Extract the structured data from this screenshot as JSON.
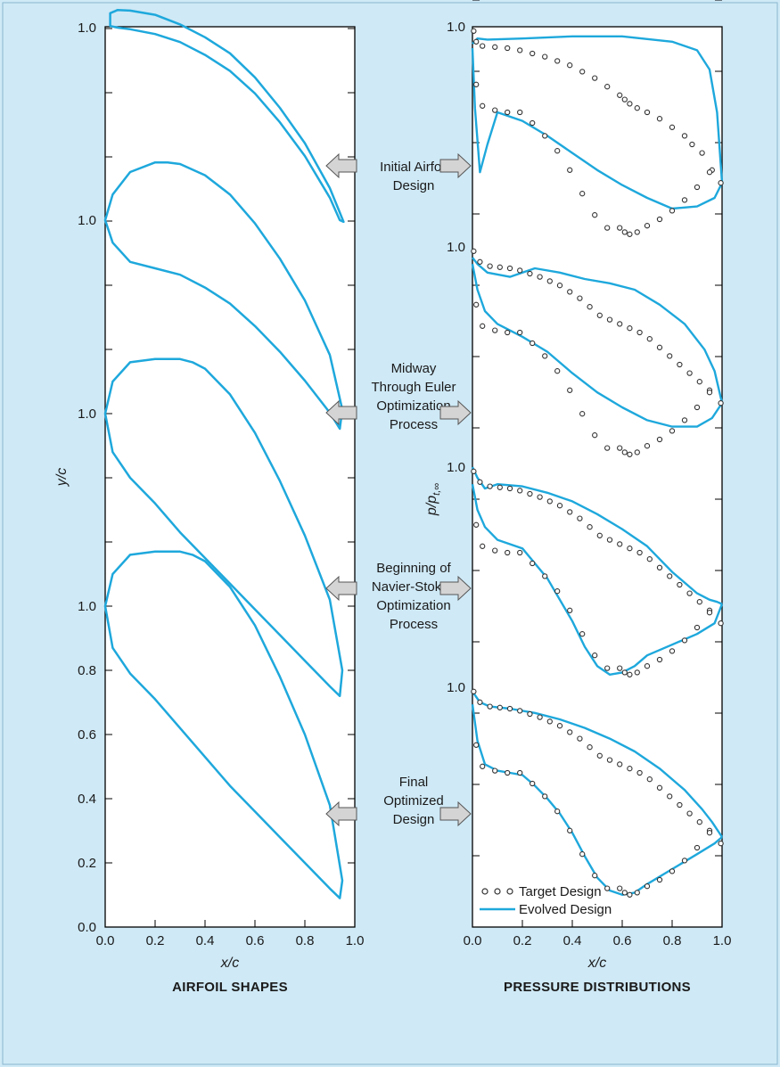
{
  "colors": {
    "background": "#cfe9f6",
    "panel": "#ffffff",
    "curve": "#1ea8dc",
    "marker_stroke": "#333333",
    "arrow_fill": "#d4d4d4",
    "arrow_stroke": "#555555"
  },
  "chart_data": [
    {
      "type": "line",
      "caption": "AIRFOIL SHAPES",
      "xlabel": "x/c",
      "ylabel": "y/c",
      "xlim": [
        0,
        1
      ],
      "ylim": [
        0,
        1.5
      ],
      "x_tick_labels": [
        "0.0",
        "0.2",
        "0.4",
        "0.6",
        "0.8",
        "1.0"
      ],
      "y_tick_labels_bottom_panel": [
        "0.0",
        "0.2",
        "0.4",
        "0.6",
        "0.8",
        "1.0"
      ],
      "stacked_panel_peak_label": "1.0",
      "series": [
        {
          "stage": "Initial Airfoil Design",
          "upper_x": [
            0.02,
            0.05,
            0.1,
            0.2,
            0.3,
            0.4,
            0.5,
            0.6,
            0.7,
            0.8,
            0.9,
            0.955
          ],
          "upper_y": [
            1.045,
            1.055,
            1.053,
            1.04,
            1.01,
            0.97,
            0.92,
            0.845,
            0.75,
            0.64,
            0.5,
            0.395
          ],
          "lower_x": [
            0.02,
            0.05,
            0.1,
            0.2,
            0.3,
            0.4,
            0.5,
            0.6,
            0.7,
            0.8,
            0.9,
            0.94
          ],
          "lower_y": [
            1.005,
            1.0,
            0.995,
            0.98,
            0.955,
            0.915,
            0.865,
            0.795,
            0.705,
            0.6,
            0.47,
            0.4
          ]
        },
        {
          "stage": "Midway Through Euler Optimization Process",
          "upper_x": [
            0.0,
            0.03,
            0.1,
            0.2,
            0.25,
            0.3,
            0.4,
            0.5,
            0.6,
            0.7,
            0.8,
            0.9,
            0.95
          ],
          "upper_y": [
            1.0,
            1.08,
            1.15,
            1.18,
            1.18,
            1.175,
            1.14,
            1.08,
            0.99,
            0.88,
            0.75,
            0.58,
            0.41
          ],
          "lower_x": [
            0.0,
            0.03,
            0.1,
            0.2,
            0.3,
            0.4,
            0.5,
            0.6,
            0.7,
            0.8,
            0.9,
            0.94
          ],
          "lower_y": [
            1.0,
            0.93,
            0.87,
            0.85,
            0.83,
            0.79,
            0.74,
            0.67,
            0.59,
            0.5,
            0.4,
            0.35
          ]
        },
        {
          "stage": "Beginning of Navier-Stokes Optimization Process",
          "upper_x": [
            0.0,
            0.03,
            0.1,
            0.2,
            0.3,
            0.35,
            0.4,
            0.5,
            0.6,
            0.7,
            0.8,
            0.9,
            0.95
          ],
          "upper_y": [
            1.0,
            1.1,
            1.16,
            1.17,
            1.17,
            1.16,
            1.14,
            1.06,
            0.94,
            0.79,
            0.62,
            0.42,
            0.2
          ],
          "lower_x": [
            0.0,
            0.03,
            0.1,
            0.2,
            0.3,
            0.4,
            0.5,
            0.6,
            0.7,
            0.8,
            0.9,
            0.94
          ],
          "lower_y": [
            1.0,
            0.88,
            0.8,
            0.72,
            0.63,
            0.55,
            0.47,
            0.39,
            0.31,
            0.23,
            0.15,
            0.12
          ]
        },
        {
          "stage": "Final Optimized Design",
          "upper_x": [
            0.0,
            0.03,
            0.1,
            0.2,
            0.3,
            0.35,
            0.4,
            0.5,
            0.6,
            0.7,
            0.8,
            0.9,
            0.95
          ],
          "upper_y": [
            1.0,
            1.1,
            1.16,
            1.17,
            1.17,
            1.16,
            1.14,
            1.06,
            0.94,
            0.78,
            0.6,
            0.38,
            0.145
          ],
          "lower_x": [
            0.0,
            0.03,
            0.1,
            0.2,
            0.3,
            0.4,
            0.5,
            0.6,
            0.7,
            0.8,
            0.9,
            0.94
          ],
          "lower_y": [
            1.0,
            0.87,
            0.79,
            0.71,
            0.62,
            0.53,
            0.44,
            0.36,
            0.28,
            0.2,
            0.12,
            0.09
          ]
        }
      ]
    },
    {
      "type": "line",
      "caption": "PRESSURE DISTRIBUTIONS",
      "xlabel": "x/c",
      "ylabel": "p/p",
      "ylabel_subscript": "t,∞",
      "xlim": [
        0,
        1
      ],
      "ylim": [
        0,
        1.0
      ],
      "x_tick_labels": [
        "0.0",
        "0.2",
        "0.4",
        "0.6",
        "0.8",
        "1.0"
      ],
      "y_tick_label": "1.0",
      "legend": [
        "Target Design",
        "Evolved Design"
      ],
      "legend_position": "bottom-left",
      "series": [
        {
          "stage": "Initial Airfoil Design",
          "target_x": [
            0.005,
            0.015,
            0.04,
            0.09,
            0.14,
            0.19,
            0.24,
            0.29,
            0.34,
            0.39,
            0.44,
            0.49,
            0.54,
            0.59,
            0.61,
            0.63,
            0.66,
            0.7,
            0.75,
            0.8,
            0.85,
            0.88,
            0.92,
            0.96,
            0.995,
            0.015,
            0.04,
            0.09,
            0.14,
            0.19,
            0.24,
            0.29,
            0.34,
            0.39,
            0.44,
            0.49,
            0.54,
            0.59,
            0.61,
            0.63,
            0.66,
            0.7,
            0.75,
            0.8,
            0.85,
            0.9,
            0.95
          ],
          "target_y": [
            0.98,
            0.93,
            0.91,
            0.905,
            0.9,
            0.89,
            0.875,
            0.86,
            0.84,
            0.82,
            0.79,
            0.76,
            0.72,
            0.68,
            0.66,
            0.64,
            0.62,
            0.6,
            0.57,
            0.53,
            0.49,
            0.45,
            0.41,
            0.33,
            0.27,
            0.73,
            0.63,
            0.61,
            0.6,
            0.6,
            0.55,
            0.49,
            0.42,
            0.33,
            0.22,
            0.12,
            0.06,
            0.06,
            0.04,
            0.03,
            0.04,
            0.07,
            0.1,
            0.14,
            0.19,
            0.25,
            0.32
          ],
          "evolved_upper_x": [
            0.0,
            0.02,
            0.06,
            0.2,
            0.4,
            0.6,
            0.8,
            0.9,
            0.95,
            0.98,
            1.0
          ],
          "evolved_upper_y": [
            0.92,
            0.945,
            0.94,
            0.945,
            0.955,
            0.955,
            0.93,
            0.89,
            0.8,
            0.6,
            0.27
          ],
          "evolved_lower_x": [
            0.0,
            0.01,
            0.03,
            0.06,
            0.1,
            0.2,
            0.3,
            0.4,
            0.5,
            0.6,
            0.7,
            0.8,
            0.9,
            0.97,
            1.0
          ],
          "evolved_lower_y": [
            0.9,
            0.62,
            0.32,
            0.45,
            0.6,
            0.56,
            0.49,
            0.41,
            0.33,
            0.26,
            0.2,
            0.15,
            0.16,
            0.2,
            0.27
          ]
        },
        {
          "stage": "Midway Through Euler Optimization Process",
          "target_x": [
            0.005,
            0.03,
            0.07,
            0.11,
            0.15,
            0.19,
            0.23,
            0.27,
            0.31,
            0.35,
            0.39,
            0.43,
            0.47,
            0.51,
            0.55,
            0.59,
            0.63,
            0.67,
            0.71,
            0.75,
            0.79,
            0.83,
            0.87,
            0.91,
            0.95,
            0.995,
            0.015,
            0.04,
            0.09,
            0.14,
            0.19,
            0.24,
            0.29,
            0.34,
            0.39,
            0.44,
            0.49,
            0.54,
            0.59,
            0.61,
            0.63,
            0.66,
            0.7,
            0.75,
            0.8,
            0.85,
            0.9,
            0.95
          ],
          "target_y": [
            0.98,
            0.93,
            0.91,
            0.905,
            0.9,
            0.89,
            0.875,
            0.86,
            0.84,
            0.82,
            0.79,
            0.76,
            0.72,
            0.68,
            0.66,
            0.64,
            0.62,
            0.6,
            0.57,
            0.53,
            0.49,
            0.45,
            0.41,
            0.37,
            0.33,
            0.27,
            0.73,
            0.63,
            0.61,
            0.6,
            0.6,
            0.55,
            0.49,
            0.42,
            0.33,
            0.22,
            0.12,
            0.06,
            0.06,
            0.04,
            0.03,
            0.04,
            0.07,
            0.1,
            0.14,
            0.19,
            0.25,
            0.32
          ],
          "evolved_upper_x": [
            0.0,
            0.02,
            0.06,
            0.15,
            0.25,
            0.35,
            0.45,
            0.55,
            0.65,
            0.75,
            0.85,
            0.93,
            0.97,
            1.0
          ],
          "evolved_upper_y": [
            0.95,
            0.92,
            0.88,
            0.86,
            0.9,
            0.88,
            0.85,
            0.83,
            0.8,
            0.73,
            0.64,
            0.52,
            0.42,
            0.27
          ],
          "evolved_lower_x": [
            0.0,
            0.02,
            0.05,
            0.1,
            0.2,
            0.3,
            0.4,
            0.5,
            0.6,
            0.7,
            0.8,
            0.9,
            0.96,
            1.0
          ],
          "evolved_lower_y": [
            0.92,
            0.8,
            0.7,
            0.64,
            0.58,
            0.51,
            0.41,
            0.32,
            0.25,
            0.19,
            0.16,
            0.16,
            0.2,
            0.27
          ]
        },
        {
          "stage": "Beginning of Navier-Stokes Optimization Process",
          "target_x": [
            0.005,
            0.03,
            0.07,
            0.11,
            0.15,
            0.19,
            0.23,
            0.27,
            0.31,
            0.35,
            0.39,
            0.43,
            0.47,
            0.51,
            0.55,
            0.59,
            0.63,
            0.67,
            0.71,
            0.75,
            0.79,
            0.83,
            0.87,
            0.91,
            0.95,
            0.995,
            0.015,
            0.04,
            0.09,
            0.14,
            0.19,
            0.24,
            0.29,
            0.34,
            0.39,
            0.44,
            0.49,
            0.54,
            0.59,
            0.61,
            0.63,
            0.66,
            0.7,
            0.75,
            0.8,
            0.85,
            0.9,
            0.95
          ],
          "target_y": [
            0.98,
            0.93,
            0.91,
            0.905,
            0.9,
            0.89,
            0.875,
            0.86,
            0.84,
            0.82,
            0.79,
            0.76,
            0.72,
            0.68,
            0.66,
            0.64,
            0.62,
            0.6,
            0.57,
            0.53,
            0.49,
            0.45,
            0.41,
            0.37,
            0.33,
            0.27,
            0.73,
            0.63,
            0.61,
            0.6,
            0.6,
            0.55,
            0.49,
            0.42,
            0.33,
            0.22,
            0.12,
            0.06,
            0.06,
            0.04,
            0.03,
            0.04,
            0.07,
            0.1,
            0.14,
            0.19,
            0.25,
            0.32
          ],
          "evolved_upper_x": [
            0.0,
            0.02,
            0.05,
            0.1,
            0.2,
            0.3,
            0.4,
            0.5,
            0.6,
            0.7,
            0.8,
            0.9,
            0.95,
            0.98,
            1.0
          ],
          "evolved_upper_y": [
            1.0,
            0.95,
            0.9,
            0.92,
            0.91,
            0.88,
            0.84,
            0.78,
            0.71,
            0.63,
            0.51,
            0.41,
            0.38,
            0.37,
            0.36
          ],
          "evolved_lower_x": [
            0.0,
            0.02,
            0.05,
            0.1,
            0.2,
            0.3,
            0.4,
            0.45,
            0.5,
            0.55,
            0.6,
            0.65,
            0.7,
            0.8,
            0.9,
            0.97,
            1.0
          ],
          "evolved_lower_y": [
            0.92,
            0.8,
            0.72,
            0.66,
            0.62,
            0.48,
            0.28,
            0.16,
            0.07,
            0.03,
            0.04,
            0.07,
            0.12,
            0.17,
            0.22,
            0.27,
            0.36
          ]
        },
        {
          "stage": "Final Optimized Design",
          "target_x": [
            0.005,
            0.03,
            0.07,
            0.11,
            0.15,
            0.19,
            0.23,
            0.27,
            0.31,
            0.35,
            0.39,
            0.43,
            0.47,
            0.51,
            0.55,
            0.59,
            0.63,
            0.67,
            0.71,
            0.75,
            0.79,
            0.83,
            0.87,
            0.91,
            0.95,
            0.995,
            0.015,
            0.04,
            0.09,
            0.14,
            0.19,
            0.24,
            0.29,
            0.34,
            0.39,
            0.44,
            0.49,
            0.54,
            0.59,
            0.61,
            0.63,
            0.66,
            0.7,
            0.75,
            0.8,
            0.85,
            0.9,
            0.95
          ],
          "target_y": [
            0.98,
            0.93,
            0.91,
            0.905,
            0.9,
            0.89,
            0.875,
            0.86,
            0.84,
            0.82,
            0.79,
            0.76,
            0.72,
            0.68,
            0.66,
            0.64,
            0.62,
            0.6,
            0.57,
            0.53,
            0.49,
            0.45,
            0.41,
            0.37,
            0.33,
            0.27,
            0.73,
            0.63,
            0.61,
            0.6,
            0.6,
            0.55,
            0.49,
            0.42,
            0.33,
            0.22,
            0.12,
            0.06,
            0.06,
            0.04,
            0.03,
            0.04,
            0.07,
            0.1,
            0.14,
            0.19,
            0.25,
            0.32
          ],
          "evolved_upper_x": [
            0.0,
            0.03,
            0.07,
            0.15,
            0.25,
            0.35,
            0.45,
            0.55,
            0.65,
            0.75,
            0.85,
            0.92,
            0.96,
            1.0
          ],
          "evolved_upper_y": [
            0.98,
            0.93,
            0.91,
            0.9,
            0.88,
            0.85,
            0.81,
            0.76,
            0.7,
            0.62,
            0.52,
            0.43,
            0.37,
            0.3
          ],
          "evolved_lower_x": [
            0.0,
            0.02,
            0.05,
            0.1,
            0.15,
            0.2,
            0.25,
            0.3,
            0.35,
            0.4,
            0.45,
            0.5,
            0.55,
            0.6,
            0.65,
            0.7,
            0.8,
            0.9,
            0.97,
            1.0
          ],
          "evolved_lower_y": [
            0.92,
            0.75,
            0.64,
            0.61,
            0.6,
            0.59,
            0.54,
            0.48,
            0.41,
            0.32,
            0.21,
            0.11,
            0.05,
            0.03,
            0.04,
            0.08,
            0.15,
            0.22,
            0.27,
            0.3
          ]
        }
      ]
    }
  ]
}
